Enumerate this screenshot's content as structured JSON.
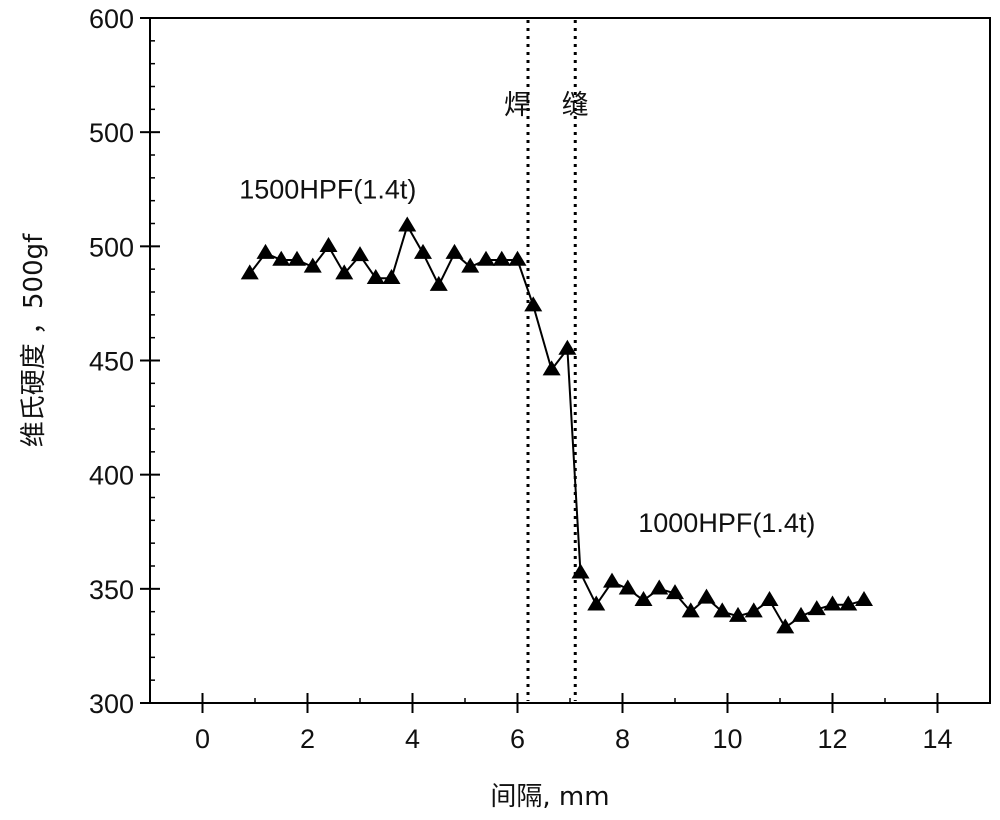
{
  "chart_data": {
    "type": "line",
    "xlabel": "间隔, mm",
    "ylabel": "维氏硬度 ，500gf",
    "xlim": [
      -1,
      15
    ],
    "ylim": [
      300,
      600
    ],
    "x_ticks": [
      0,
      2,
      4,
      6,
      8,
      10,
      12,
      14
    ],
    "y_ticks": [
      300,
      350,
      400,
      450,
      500,
      600
    ],
    "y_tick_labels": [
      "300",
      "350",
      "400",
      "450",
      "500",
      "500",
      "600"
    ],
    "grid": false,
    "marker": "filled-triangle",
    "color": "#000000",
    "series": [
      {
        "x": [
          0.9,
          1.2,
          1.5,
          1.8,
          2.1,
          2.4,
          2.7,
          3.0,
          3.3,
          3.6,
          3.9,
          4.2,
          4.5,
          4.8,
          5.1,
          5.4,
          5.7,
          6.0,
          6.3,
          6.65,
          6.95,
          7.2,
          7.5,
          7.8,
          8.1,
          8.4,
          8.7,
          9.0,
          9.3,
          9.6,
          9.9,
          10.2,
          10.5,
          10.8,
          11.1,
          11.4,
          11.7,
          12.0,
          12.3,
          12.6
        ],
        "y": [
          488,
          497,
          494,
          494,
          491,
          500,
          488,
          496,
          486,
          486,
          509,
          497,
          483,
          497,
          491,
          494,
          494,
          494,
          474,
          446,
          455,
          357,
          343,
          353,
          350,
          345,
          350,
          348,
          340,
          346,
          340,
          338,
          340,
          345,
          333,
          338,
          341,
          343,
          343,
          345
        ]
      }
    ],
    "vertical_lines": [
      {
        "x": 6.2,
        "style": "dotted"
      },
      {
        "x": 7.1,
        "style": "dotted"
      }
    ],
    "annotations": [
      {
        "text": "焊",
        "x": 6.0,
        "y": 558
      },
      {
        "text": "缝",
        "x": 7.1,
        "y": 558
      },
      {
        "text": "1500HPF(1.4t)",
        "x": 0.7,
        "y": 521
      },
      {
        "text": "1000HPF(1.4t)",
        "x": 8.3,
        "y": 375
      }
    ]
  }
}
